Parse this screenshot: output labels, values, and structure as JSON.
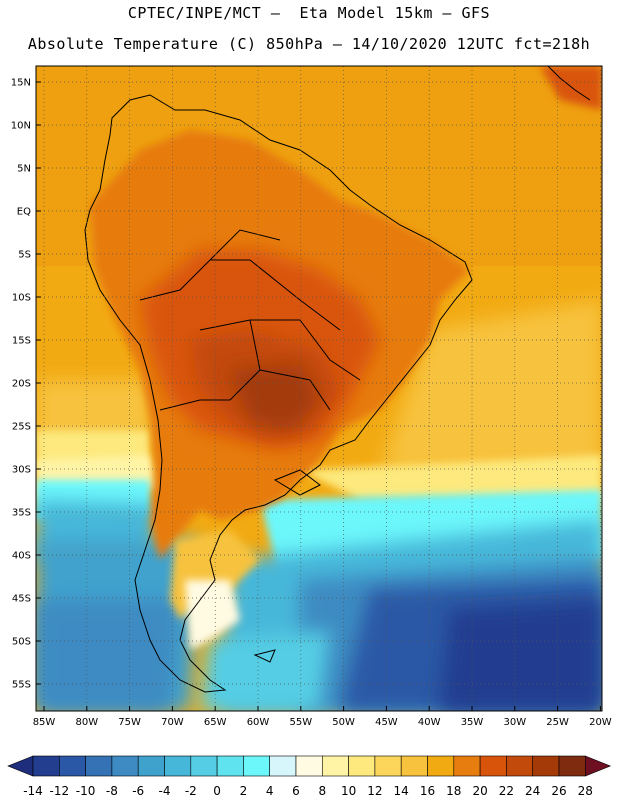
{
  "header": {
    "title_line1": "CPTEC/INPE/MCT –  Eta Model 15km – GFS",
    "title_line2": "Absolute Temperature (C) 850hPa – 14/10/2020 12UTC fct=218h"
  },
  "axes": {
    "lat_labels": [
      "15N",
      "10N",
      "5N",
      "EQ",
      "5S",
      "10S",
      "15S",
      "20S",
      "25S",
      "30S",
      "35S",
      "40S",
      "45S",
      "50S",
      "55S"
    ],
    "lon_labels": [
      "85W",
      "80W",
      "75W",
      "70W",
      "65W",
      "60W",
      "55W",
      "50W",
      "45W",
      "40W",
      "35W",
      "30W",
      "25W",
      "20W"
    ],
    "gridlines": "dotted"
  },
  "colorbar": {
    "labels": [
      "-14",
      "-12",
      "-10",
      "-8",
      "-6",
      "-4",
      "-2",
      "0",
      "2",
      "4",
      "6",
      "8",
      "10",
      "12",
      "14",
      "16",
      "18",
      "20",
      "22",
      "24",
      "26",
      "28"
    ],
    "colors": [
      "#233d8f",
      "#2a58a6",
      "#3472b5",
      "#3d8bc2",
      "#3fa2cd",
      "#46b7d9",
      "#55cde4",
      "#5fe3ef",
      "#6cf7fb",
      "#d6f6fb",
      "#fffbe3",
      "#fff4a6",
      "#fde97d",
      "#fbd65a",
      "#f7c23e",
      "#f2aa12",
      "#e77c0f",
      "#d9540b",
      "#c24a0b",
      "#a33a07",
      "#7f2b10"
    ],
    "under_color": "#1f2d7d",
    "over_color": "#6e1022"
  },
  "map": {
    "domain": "South America",
    "ocean_colors": {
      "tropical": "#f2aa12",
      "subtropical": "#fde97d",
      "cold_southern": "#2a58a6"
    }
  }
}
